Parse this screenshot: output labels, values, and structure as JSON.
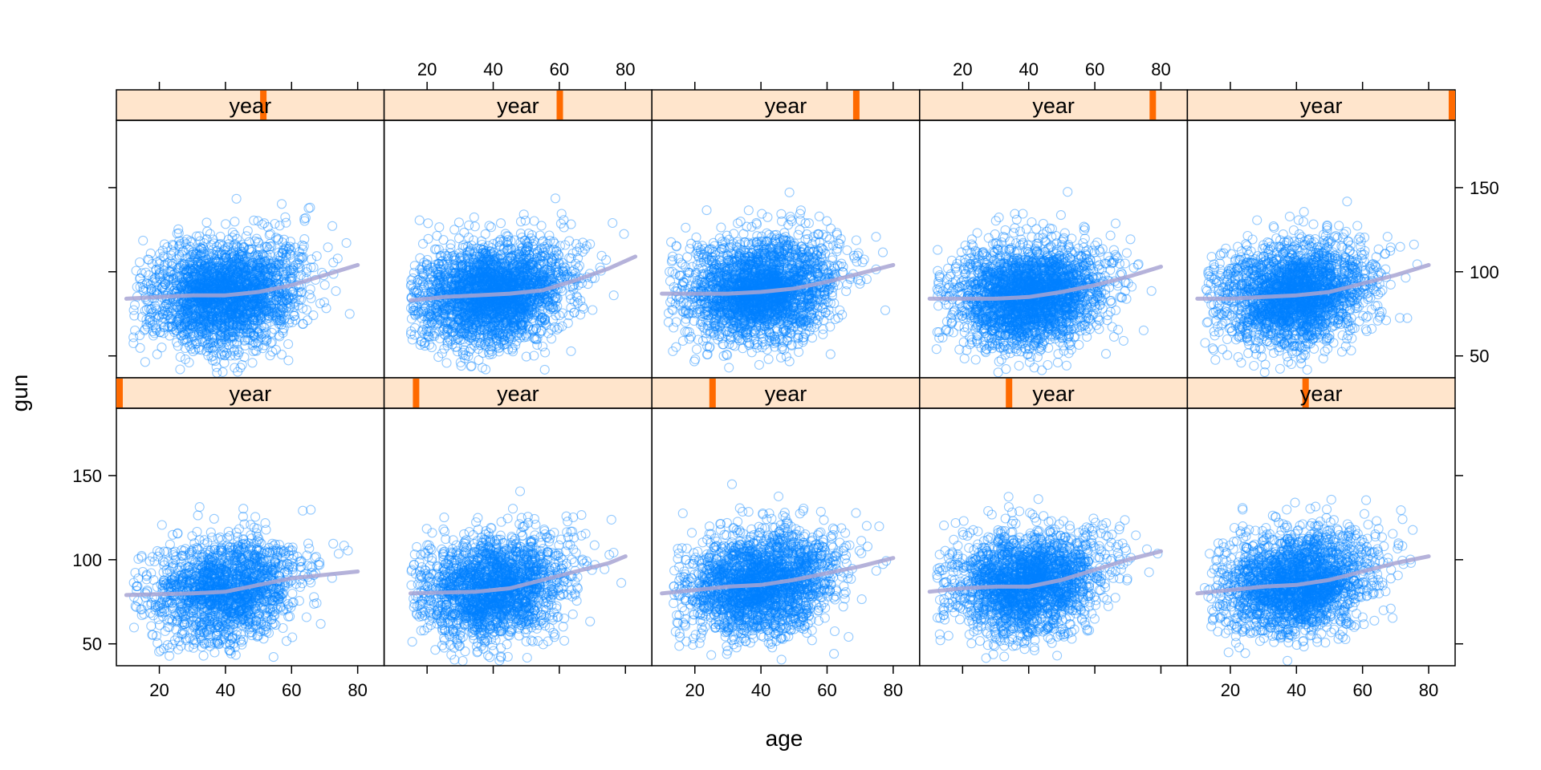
{
  "chart_data": {
    "type": "scatter",
    "xlabel": "age",
    "ylabel": "gun",
    "xlim": [
      7,
      88
    ],
    "ylim": [
      37,
      190
    ],
    "x_ticks": [
      20,
      40,
      60,
      80
    ],
    "y_ticks": [
      50,
      100,
      150
    ],
    "strip_label": "year",
    "colors": {
      "points": "#0080ff",
      "smooth": "#a8a4d4",
      "strip_bg": "#ffe5cc",
      "strip_marker": "#ff6a00",
      "frame": "#000000"
    },
    "panels": [
      {
        "strip": "year",
        "year_level": 0.0,
        "n_points": 1800,
        "smooth_x": [
          10,
          20,
          30,
          40,
          50,
          60,
          70,
          80
        ],
        "smooth_y": [
          79,
          79.5,
          80,
          81,
          85,
          89,
          91,
          93
        ],
        "x_range": [
          12,
          78
        ]
      },
      {
        "strip": "year",
        "year_level": 0.11,
        "n_points": 2100,
        "smooth_x": [
          15,
          25,
          35,
          45,
          55,
          65,
          75,
          80
        ],
        "smooth_y": [
          80,
          80.5,
          81,
          83,
          88,
          93,
          98,
          102
        ],
        "x_range": [
          15,
          80
        ]
      },
      {
        "strip": "year",
        "year_level": 0.22,
        "n_points": 2300,
        "smooth_x": [
          10,
          20,
          30,
          40,
          50,
          60,
          70,
          80
        ],
        "smooth_y": [
          80,
          82,
          84,
          85,
          88,
          92,
          96,
          101
        ],
        "x_range": [
          12,
          80
        ]
      },
      {
        "strip": "year",
        "year_level": 0.33,
        "n_points": 2300,
        "smooth_x": [
          10,
          20,
          30,
          40,
          50,
          60,
          70,
          80
        ],
        "smooth_y": [
          81,
          83,
          84,
          84,
          88,
          94,
          100,
          105
        ],
        "x_range": [
          12,
          80
        ]
      },
      {
        "strip": "year",
        "year_level": 0.44,
        "n_points": 2300,
        "smooth_x": [
          10,
          20,
          30,
          40,
          50,
          60,
          70,
          80
        ],
        "smooth_y": [
          80,
          82,
          84,
          85,
          88,
          93,
          98,
          102
        ],
        "x_range": [
          12,
          80
        ]
      },
      {
        "strip": "year",
        "year_level": 0.55,
        "n_points": 2500,
        "smooth_x": [
          10,
          20,
          30,
          40,
          50,
          60,
          70,
          80
        ],
        "smooth_y": [
          84,
          85,
          86,
          86,
          88,
          92,
          98,
          104
        ],
        "x_range": [
          12,
          80
        ]
      },
      {
        "strip": "year",
        "year_level": 0.66,
        "n_points": 2700,
        "smooth_x": [
          15,
          25,
          35,
          45,
          55,
          65,
          75,
          83
        ],
        "smooth_y": [
          83,
          85,
          86,
          87,
          89,
          95,
          102,
          109
        ],
        "x_range": [
          15,
          83
        ]
      },
      {
        "strip": "year",
        "year_level": 0.77,
        "n_points": 2600,
        "smooth_x": [
          10,
          20,
          30,
          40,
          50,
          60,
          70,
          80
        ],
        "smooth_y": [
          87,
          87,
          87,
          88,
          90,
          94,
          99,
          104
        ],
        "x_range": [
          12,
          80
        ]
      },
      {
        "strip": "year",
        "year_level": 0.88,
        "n_points": 2700,
        "smooth_x": [
          10,
          20,
          30,
          40,
          50,
          60,
          70,
          80
        ],
        "smooth_y": [
          84,
          84,
          84,
          85,
          88,
          92,
          97,
          103
        ],
        "x_range": [
          12,
          80
        ]
      },
      {
        "strip": "year",
        "year_level": 1.0,
        "n_points": 2400,
        "smooth_x": [
          10,
          20,
          30,
          40,
          50,
          60,
          70,
          80
        ],
        "smooth_y": [
          84,
          84,
          85,
          86,
          88,
          93,
          98,
          104
        ],
        "x_range": [
          12,
          80
        ]
      }
    ]
  }
}
